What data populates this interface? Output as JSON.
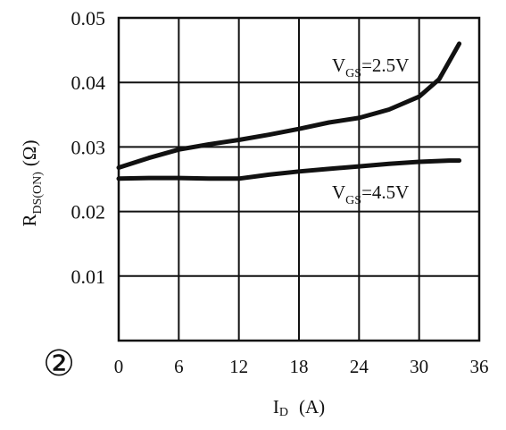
{
  "chart_data": {
    "type": "line",
    "figure_marker": "②",
    "xlabel_main": "I",
    "xlabel_sub": "D",
    "xlabel_unit": "(A)",
    "ylabel_main": "R",
    "ylabel_sub": "DS(ON)",
    "ylabel_unit": "(Ω)",
    "x_ticks": [
      "0",
      "6",
      "12",
      "18",
      "24",
      "30",
      "36"
    ],
    "y_ticks": [
      "0.01",
      "0.02",
      "0.03",
      "0.04",
      "0.05"
    ],
    "xlim": [
      0,
      36
    ],
    "ylim": [
      0,
      0.05
    ],
    "grid": true,
    "series": [
      {
        "name_main": "V",
        "name_sub": "GS",
        "name_value": "=2.5V",
        "x": [
          0,
          3,
          6,
          9,
          12,
          15,
          18,
          21,
          24,
          27,
          30,
          32,
          34
        ],
        "y": [
          0.0268,
          0.0283,
          0.0296,
          0.0304,
          0.0311,
          0.0319,
          0.0328,
          0.0338,
          0.0345,
          0.0358,
          0.0378,
          0.0405,
          0.046
        ]
      },
      {
        "name_main": "V",
        "name_sub": "GS",
        "name_value": "=4.5V",
        "x": [
          0,
          3,
          6,
          9,
          12,
          15,
          18,
          21,
          24,
          27,
          30,
          33,
          34
        ],
        "y": [
          0.0251,
          0.0252,
          0.0252,
          0.0251,
          0.0251,
          0.0257,
          0.0262,
          0.0266,
          0.027,
          0.0274,
          0.0277,
          0.0279,
          0.0279
        ]
      }
    ]
  }
}
